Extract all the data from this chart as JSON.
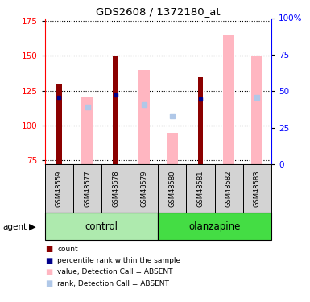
{
  "title": "GDS2608 / 1372180_at",
  "samples": [
    "GSM48559",
    "GSM48577",
    "GSM48578",
    "GSM48579",
    "GSM48580",
    "GSM48581",
    "GSM48582",
    "GSM48583"
  ],
  "ylim_left": [
    72,
    177
  ],
  "ylim_right": [
    0,
    100
  ],
  "yticks_left": [
    75,
    100,
    125,
    150,
    175
  ],
  "yticks_right": [
    0,
    25,
    50,
    75,
    100
  ],
  "red_bars": [
    130,
    null,
    150,
    null,
    null,
    135,
    null,
    null
  ],
  "blue_squares": [
    120,
    null,
    122,
    null,
    null,
    119,
    null,
    null
  ],
  "pink_bars": [
    null,
    120,
    null,
    140,
    95,
    null,
    165,
    150
  ],
  "light_blue_squares": [
    null,
    113,
    null,
    115,
    107,
    null,
    null,
    120
  ],
  "colors": {
    "red": "#8B0000",
    "blue": "#00008B",
    "pink": "#FFB6C1",
    "light_blue": "#B0C8E8",
    "control_light": "#AEEAAE",
    "control_dark": "#44DD44",
    "sample_bg": "#D3D3D3",
    "white": "#FFFFFF"
  },
  "legend_items": [
    {
      "color": "#8B0000",
      "label": "count"
    },
    {
      "color": "#00008B",
      "label": "percentile rank within the sample"
    },
    {
      "color": "#FFB6C1",
      "label": "value, Detection Call = ABSENT"
    },
    {
      "color": "#B0C8E8",
      "label": "rank, Detection Call = ABSENT"
    }
  ]
}
